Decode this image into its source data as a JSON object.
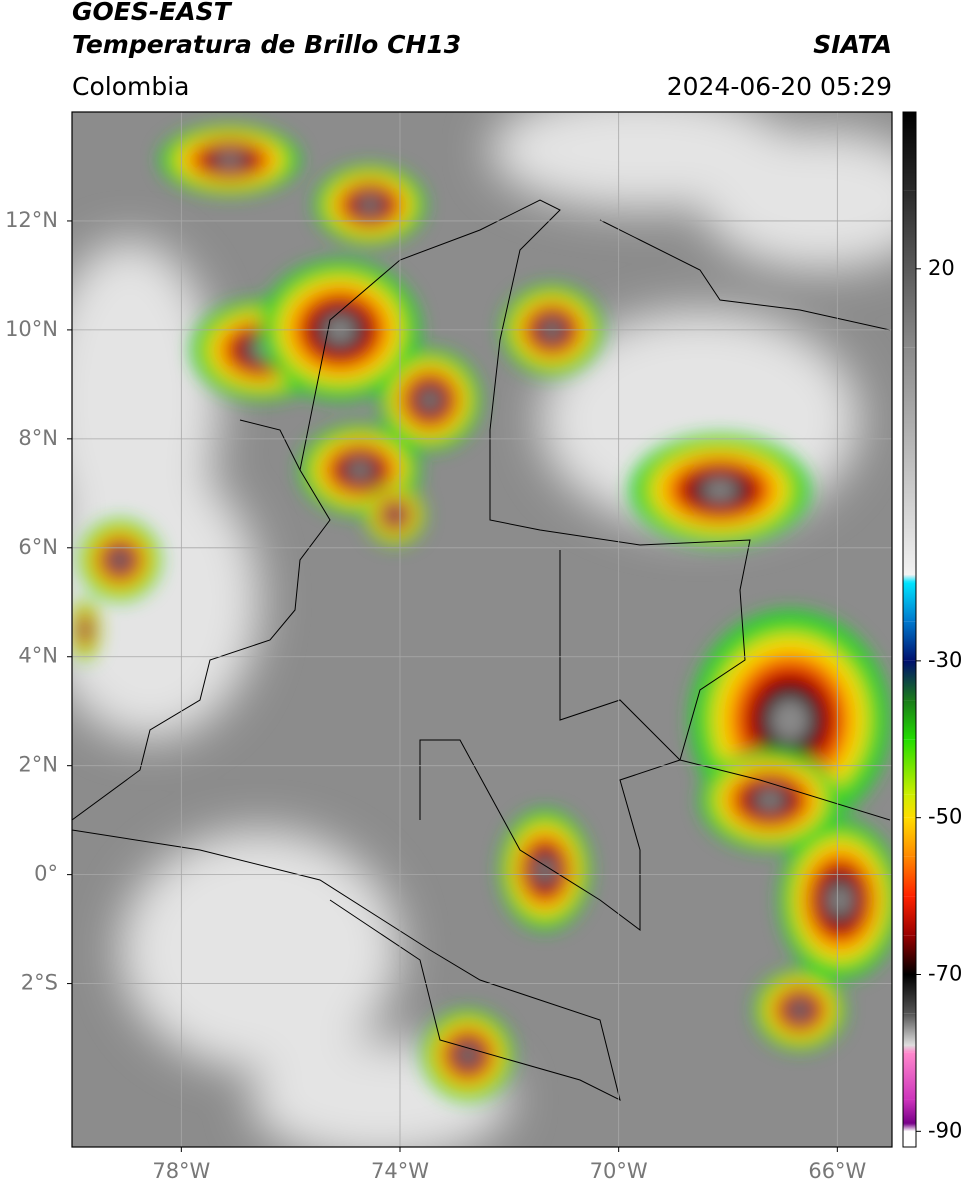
{
  "header": {
    "satellite": "GOES-EAST",
    "product": "Temperatura de Brillo CH13",
    "source": "SIATA",
    "region": "Colombia",
    "datetime": "2024-06-20 05:29"
  },
  "map": {
    "lonlim": [
      -80,
      -65
    ],
    "latlim": [
      -5,
      14
    ],
    "lat_ticks": [
      {
        "value": 12,
        "label": "12°N"
      },
      {
        "value": 10,
        "label": "10°N"
      },
      {
        "value": 8,
        "label": "8°N"
      },
      {
        "value": 6,
        "label": "6°N"
      },
      {
        "value": 4,
        "label": "4°N"
      },
      {
        "value": 2,
        "label": "2°N"
      },
      {
        "value": 0,
        "label": "0°"
      },
      {
        "value": -2,
        "label": "2°S"
      }
    ],
    "lon_ticks": [
      {
        "value": -78,
        "label": "78°W"
      },
      {
        "value": -74,
        "label": "74°W"
      },
      {
        "value": -70,
        "label": "70°W"
      },
      {
        "value": -66,
        "label": "66°W"
      }
    ],
    "grid": true
  },
  "colorbar": {
    "lim": [
      -92,
      40
    ],
    "ticks": [
      20,
      -30,
      -50,
      -70,
      -90
    ],
    "stops": [
      {
        "value": 40,
        "color": "#000000"
      },
      {
        "value": 30,
        "color": "#2a2a2a"
      },
      {
        "value": 10,
        "color": "#8a8a8a"
      },
      {
        "value": -19,
        "color": "#f2f2f2"
      },
      {
        "value": -20,
        "color": "#00e5ff"
      },
      {
        "value": -25,
        "color": "#0077cc"
      },
      {
        "value": -30,
        "color": "#00106e"
      },
      {
        "value": -35,
        "color": "#1a7a1a"
      },
      {
        "value": -40,
        "color": "#22dd00"
      },
      {
        "value": -47,
        "color": "#ccee00"
      },
      {
        "value": -50,
        "color": "#ffdd00"
      },
      {
        "value": -55,
        "color": "#ff8800"
      },
      {
        "value": -60,
        "color": "#ff2200"
      },
      {
        "value": -65,
        "color": "#990000"
      },
      {
        "value": -70,
        "color": "#000000"
      },
      {
        "value": -75,
        "color": "#555555"
      },
      {
        "value": -79,
        "color": "#dddddd"
      },
      {
        "value": -80,
        "color": "#ff88cc"
      },
      {
        "value": -86,
        "color": "#cc33bb"
      },
      {
        "value": -89,
        "color": "#770088"
      },
      {
        "value": -90,
        "color": "#ffffff"
      },
      {
        "value": -92,
        "color": "#ffffff"
      }
    ]
  }
}
